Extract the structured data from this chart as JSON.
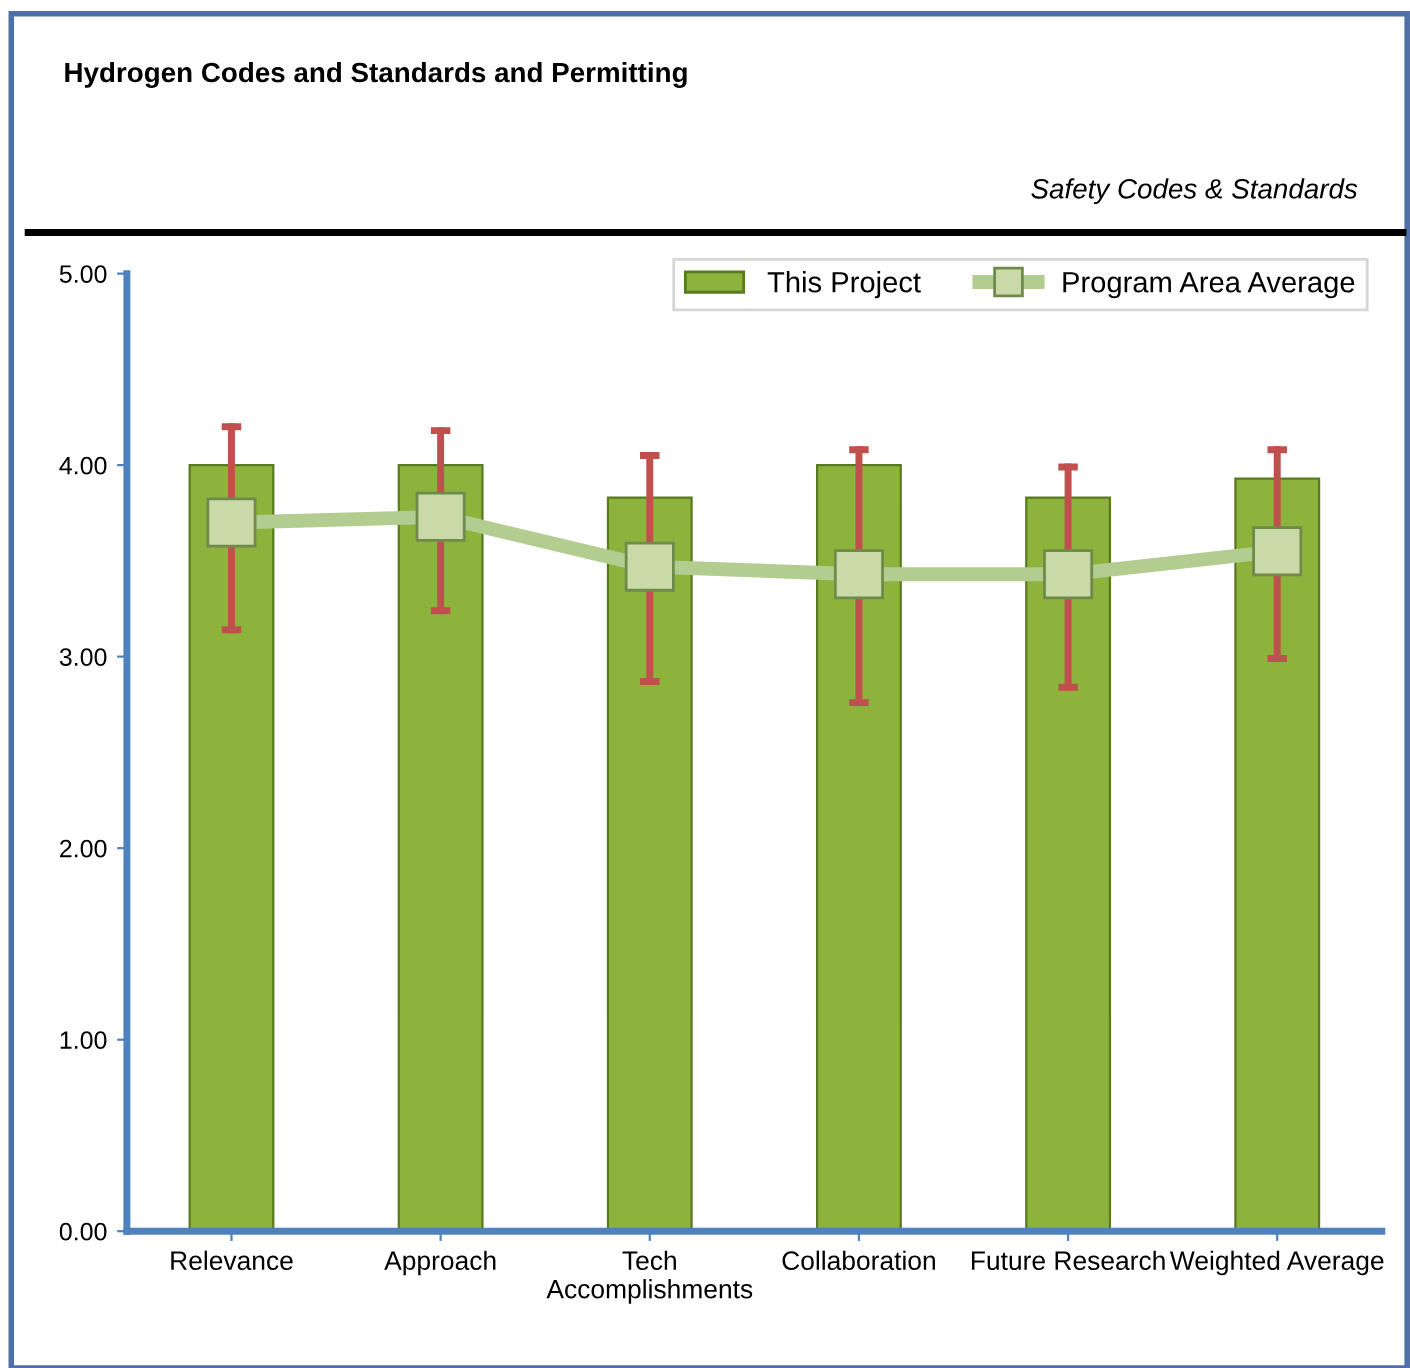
{
  "chart_data": {
    "type": "bar",
    "title": "Hydrogen Codes and Standards and Permitting",
    "subtitle": "Safety Codes & Standards",
    "categories": [
      "Relevance",
      "Approach",
      "Tech\nAccomplishments",
      "Collaboration",
      "Future Research",
      "Weighted Average"
    ],
    "series": [
      {
        "name": "This Project",
        "color": "#8db33c",
        "values": [
          4.0,
          4.0,
          3.83,
          4.0,
          3.83,
          3.93
        ]
      },
      {
        "name": "Program Area Average",
        "type": "line",
        "color": "#b3cc8f",
        "marker": "square",
        "values": [
          3.7,
          3.73,
          3.47,
          3.43,
          3.43,
          3.55
        ],
        "errors": [
          [
            3.14,
            4.2
          ],
          [
            3.24,
            4.18
          ],
          [
            2.87,
            4.05
          ],
          [
            2.76,
            4.08
          ],
          [
            2.84,
            3.99
          ],
          [
            2.99,
            4.08
          ]
        ]
      }
    ],
    "ylim": [
      0,
      5
    ],
    "yticks": [
      {
        "value": 0,
        "label": "0.00"
      },
      {
        "value": 1,
        "label": "1.00"
      },
      {
        "value": 2,
        "label": "2.00"
      },
      {
        "value": 3,
        "label": "3.00"
      },
      {
        "value": 4,
        "label": "4.00"
      },
      {
        "value": 5,
        "label": "5.00"
      }
    ],
    "grid": false,
    "legend": "top right"
  }
}
